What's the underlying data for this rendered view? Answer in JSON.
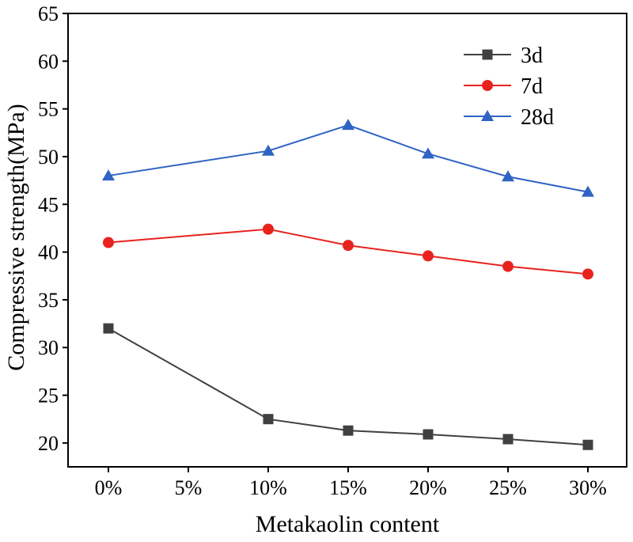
{
  "chart_data": {
    "type": "line",
    "title": "",
    "xlabel": "Metakaolin content",
    "ylabel": "Compressive strength(MPa)",
    "categories": [
      "0%",
      "5%",
      "10%",
      "15%",
      "20%",
      "25%",
      "30%"
    ],
    "ylim": [
      17.5,
      65
    ],
    "yticks": [
      20,
      25,
      30,
      35,
      40,
      45,
      50,
      55,
      60,
      65
    ],
    "grid": false,
    "legend_position": "top-right",
    "series": [
      {
        "name": "3d",
        "marker": "square",
        "color": "#404040",
        "x": [
          "0%",
          "10%",
          "15%",
          "20%",
          "25%",
          "30%"
        ],
        "values": [
          32.0,
          22.5,
          21.3,
          20.9,
          20.4,
          19.8
        ]
      },
      {
        "name": "7d",
        "marker": "circle",
        "color": "#e8231e",
        "x": [
          "0%",
          "10%",
          "15%",
          "20%",
          "25%",
          "30%"
        ],
        "values": [
          41.0,
          42.4,
          40.7,
          39.6,
          38.5,
          37.7
        ]
      },
      {
        "name": "28d",
        "marker": "triangle",
        "color": "#2f63c4",
        "x": [
          "0%",
          "10%",
          "15%",
          "20%",
          "25%",
          "30%"
        ],
        "values": [
          48.0,
          50.6,
          53.3,
          50.3,
          47.9,
          46.3
        ]
      }
    ]
  }
}
